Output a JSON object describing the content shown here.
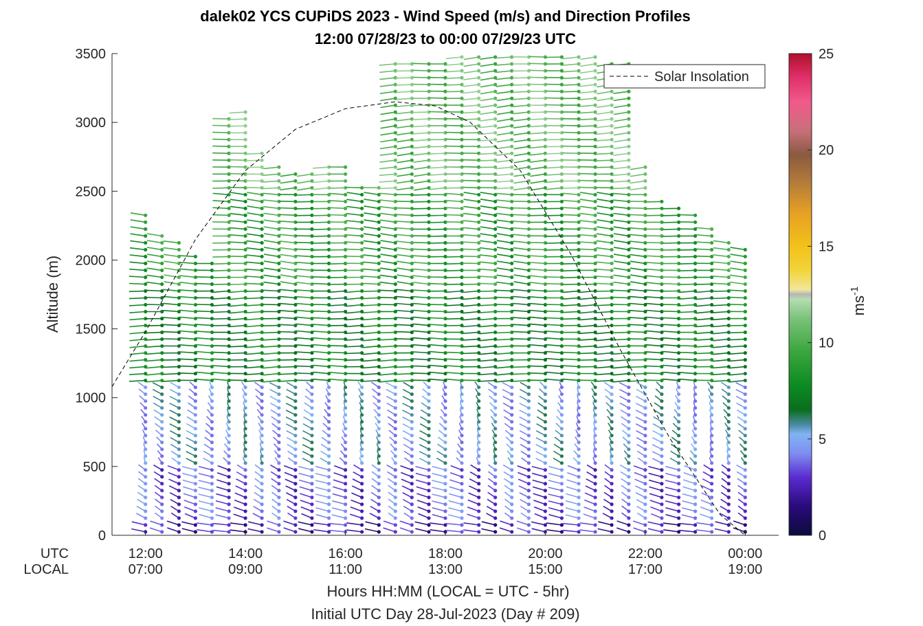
{
  "chart_data": {
    "type": "wind-barb-profile",
    "title": "dalek02 YCS CUPiDS 2023 - Wind Speed (m/s) and Direction Profiles",
    "subtitle": "12:00 07/28/23 to 00:00 07/29/23  UTC",
    "ylabel": "Altitude (m)",
    "xlabel": "Hours HH:MM  (LOCAL = UTC - 5hr)",
    "footer": "Initial UTC Day 28-Jul-2023 (Day # 209)",
    "x_row_labels": [
      "UTC",
      "LOCAL"
    ],
    "x_ticks_utc": [
      "12:00",
      "14:00",
      "16:00",
      "18:00",
      "20:00",
      "22:00",
      "00:00"
    ],
    "x_ticks_local": [
      "07:00",
      "09:00",
      "11:00",
      "13:00",
      "15:00",
      "17:00",
      "19:00"
    ],
    "x_tick_hours": [
      12,
      14,
      16,
      18,
      20,
      22,
      24
    ],
    "x_range_hours": [
      11.33,
      24.67
    ],
    "yticks": [
      "0",
      "500",
      "1000",
      "1500",
      "2000",
      "2500",
      "3000",
      "3500"
    ],
    "ylim": [
      0,
      3500
    ],
    "colorbar": {
      "label": "ms",
      "label_exponent": "-1",
      "range": [
        0,
        25
      ],
      "ticks": [
        "0",
        "5",
        "10",
        "15",
        "20",
        "25"
      ]
    },
    "legend": {
      "entry": "Solar Insolation",
      "location": "top-right",
      "style": "dashed"
    },
    "solar_insolation_curve": {
      "hours": [
        11.33,
        12,
        13,
        14,
        15,
        16,
        17,
        17.8,
        18.5,
        19.5,
        20.5,
        21.5,
        22.5,
        23.5,
        24,
        24.67
      ],
      "altitude": [
        1080,
        1480,
        2150,
        2650,
        2950,
        3100,
        3150,
        3120,
        3000,
        2650,
        2050,
        1350,
        700,
        150,
        0,
        0
      ]
    },
    "profile_hours": [
      12.0,
      12.33,
      12.67,
      13.0,
      13.33,
      13.67,
      14.0,
      14.33,
      14.67,
      15.0,
      15.33,
      15.67,
      16.0,
      16.33,
      16.67,
      17.0,
      17.33,
      17.67,
      18.0,
      18.33,
      18.67,
      19.0,
      19.33,
      19.67,
      20.0,
      20.33,
      20.67,
      21.0,
      21.33,
      21.67,
      22.0,
      22.33,
      22.67,
      23.0,
      23.33,
      23.67,
      24.0
    ],
    "profile_top_altitude": [
      2350,
      2200,
      2150,
      2050,
      2000,
      3050,
      3100,
      2800,
      2700,
      2650,
      2650,
      2700,
      2700,
      2550,
      2550,
      3450,
      3450,
      3450,
      3450,
      3500,
      3500,
      3500,
      3500,
      3500,
      3500,
      3500,
      3500,
      3500,
      3450,
      3450,
      2700,
      2450,
      2400,
      2350,
      2250,
      2150,
      2100
    ],
    "profile_bottom_altitude": [
      0,
      0,
      0,
      0,
      0,
      0,
      0,
      0,
      0,
      0,
      0,
      0,
      0,
      0,
      0,
      0,
      0,
      0,
      0,
      0,
      0,
      0,
      0,
      0,
      0,
      0,
      0,
      0,
      0,
      0,
      0,
      0,
      0,
      0,
      0,
      0,
      0
    ],
    "wind_regimes": [
      {
        "alt_from": 0,
        "alt_to": 100,
        "speed_ms": 2.5,
        "direction_deg": 300
      },
      {
        "alt_from": 100,
        "alt_to": 500,
        "speed_ms": 3.5,
        "direction_deg": 320
      },
      {
        "alt_from": 500,
        "alt_to": 1100,
        "speed_ms": 5.0,
        "direction_deg": 340
      },
      {
        "alt_from": 1100,
        "alt_to": 1800,
        "speed_ms": 7.5,
        "direction_deg": 270
      },
      {
        "alt_from": 1800,
        "alt_to": 2500,
        "speed_ms": 9.0,
        "direction_deg": 280
      },
      {
        "alt_from": 2500,
        "alt_to": 3500,
        "speed_ms": 10.5,
        "direction_deg": 260
      }
    ]
  }
}
